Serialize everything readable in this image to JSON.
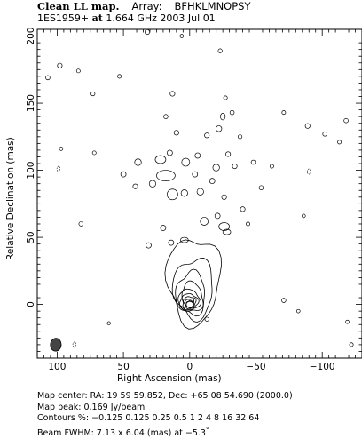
{
  "title": {
    "main": "Clean LL map.",
    "array_label": "Array:",
    "array": "BFHKLMNOPSY",
    "source": "1ES1959+",
    "at": "at",
    "frequency": "1.664 GHz 2003 Jul 01"
  },
  "chart_data": {
    "type": "contour",
    "xlabel": "Right Ascension  (mas)",
    "ylabel": "Relative Declination  (mas)",
    "xlim": [
      115,
      -130
    ],
    "ylim": [
      -40,
      205
    ],
    "x_ticks": [
      100,
      50,
      0,
      -50,
      -100
    ],
    "x_tick_labels": [
      "100",
      "50",
      "0",
      "−50",
      "−100"
    ],
    "y_ticks": [
      0,
      50,
      100,
      150,
      200
    ],
    "y_tick_labels": [
      "0",
      "50",
      "100",
      "150",
      "200"
    ],
    "core": {
      "x": 0,
      "y": 0
    },
    "contour_levels_percent": [
      -0.125,
      0.125,
      0.25,
      0.5,
      1,
      2,
      4,
      8,
      16,
      32,
      64
    ],
    "jet_contours": [
      {
        "level": 0.125,
        "cx": -3,
        "cy": 18,
        "rx": 20,
        "ry": 32
      },
      {
        "level": 0.25,
        "cx": -3,
        "cy": 12,
        "rx": 15,
        "ry": 22
      },
      {
        "level": 0.5,
        "cx": -1,
        "cy": 8,
        "rx": 11,
        "ry": 16
      },
      {
        "level": 1,
        "cx": -1,
        "cy": 5,
        "rx": 9,
        "ry": 11
      },
      {
        "level": 2,
        "cx": 0,
        "cy": 3,
        "rx": 7.5,
        "ry": 8
      },
      {
        "level": 4,
        "cx": 0,
        "cy": 2,
        "rx": 6,
        "ry": 6
      },
      {
        "level": 8,
        "cx": 0,
        "cy": 1.5,
        "rx": 4.5,
        "ry": 4.5
      },
      {
        "level": 16,
        "cx": 0,
        "cy": 1,
        "rx": 3.5,
        "ry": 3.2
      },
      {
        "level": 32,
        "cx": 0,
        "cy": 0.5,
        "rx": 2.5,
        "ry": 2.3
      },
      {
        "level": 64,
        "cx": 0,
        "cy": 0,
        "rx": 1.5,
        "ry": 1.4
      }
    ],
    "noise_blobs": [
      {
        "x": 32,
        "y": 203,
        "rx": 1.8,
        "ry": 1.8
      },
      {
        "x": 6,
        "y": 200,
        "rx": 1.3,
        "ry": 1.3
      },
      {
        "x": -23,
        "y": 189,
        "rx": 1.5,
        "ry": 1.5
      },
      {
        "x": 107,
        "y": 169,
        "rx": 1.6,
        "ry": 1.6
      },
      {
        "x": 98,
        "y": 178,
        "rx": 1.8,
        "ry": 1.8
      },
      {
        "x": 84,
        "y": 174,
        "rx": 1.4,
        "ry": 1.4
      },
      {
        "x": 73,
        "y": 157,
        "rx": 1.5,
        "ry": 1.5
      },
      {
        "x": 53,
        "y": 170,
        "rx": 1.4,
        "ry": 1.4
      },
      {
        "x": 13,
        "y": 157,
        "rx": 1.8,
        "ry": 1.8
      },
      {
        "x": 18,
        "y": 140,
        "rx": 1.6,
        "ry": 1.6
      },
      {
        "x": 10,
        "y": 128,
        "rx": 1.8,
        "ry": 1.8
      },
      {
        "x": -13,
        "y": 126,
        "rx": 1.8,
        "ry": 1.8
      },
      {
        "x": -22,
        "y": 131,
        "rx": 2.2,
        "ry": 2.2
      },
      {
        "x": -25,
        "y": 140,
        "rx": 1.8,
        "ry": 2.5
      },
      {
        "x": -32,
        "y": 143,
        "rx": 1.6,
        "ry": 1.6
      },
      {
        "x": -27,
        "y": 154,
        "rx": 1.4,
        "ry": 1.4
      },
      {
        "x": -38,
        "y": 125,
        "rx": 1.5,
        "ry": 1.5
      },
      {
        "x": -71,
        "y": 143,
        "rx": 1.4,
        "ry": 1.4
      },
      {
        "x": -89,
        "y": 133,
        "rx": 1.8,
        "ry": 1.8
      },
      {
        "x": -102,
        "y": 127,
        "rx": 1.6,
        "ry": 1.6
      },
      {
        "x": -118,
        "y": 137,
        "rx": 1.6,
        "ry": 1.6
      },
      {
        "x": -113,
        "y": 121,
        "rx": 1.4,
        "ry": 1.4
      },
      {
        "x": 72,
        "y": 113,
        "rx": 1.4,
        "ry": 1.4
      },
      {
        "x": 97,
        "y": 116,
        "rx": 1.3,
        "ry": 1.3
      },
      {
        "x": 22,
        "y": 108,
        "rx": 4,
        "ry": 3
      },
      {
        "x": 15,
        "y": 113,
        "rx": 2,
        "ry": 2
      },
      {
        "x": 3,
        "y": 106,
        "rx": 3,
        "ry": 3
      },
      {
        "x": -6,
        "y": 111,
        "rx": 2,
        "ry": 2
      },
      {
        "x": 39,
        "y": 106,
        "rx": 2.5,
        "ry": 2.5
      },
      {
        "x": 50,
        "y": 97,
        "rx": 2,
        "ry": 2
      },
      {
        "x": 41,
        "y": 88,
        "rx": 1.8,
        "ry": 1.8
      },
      {
        "x": 28,
        "y": 90,
        "rx": 2.5,
        "ry": 2.5
      },
      {
        "x": 18,
        "y": 96,
        "rx": 7,
        "ry": 4
      },
      {
        "x": 13,
        "y": 82,
        "rx": 4,
        "ry": 4
      },
      {
        "x": 4,
        "y": 83,
        "rx": 2.5,
        "ry": 2.5
      },
      {
        "x": -4,
        "y": 97,
        "rx": 2,
        "ry": 2
      },
      {
        "x": -8,
        "y": 84,
        "rx": 2.5,
        "ry": 2.5
      },
      {
        "x": -17,
        "y": 92,
        "rx": 2,
        "ry": 2
      },
      {
        "x": -20,
        "y": 102,
        "rx": 2.5,
        "ry": 2.5
      },
      {
        "x": -29,
        "y": 112,
        "rx": 1.8,
        "ry": 1.8
      },
      {
        "x": -34,
        "y": 103,
        "rx": 1.8,
        "ry": 1.8
      },
      {
        "x": -48,
        "y": 106,
        "rx": 1.6,
        "ry": 1.6
      },
      {
        "x": -62,
        "y": 103,
        "rx": 1.4,
        "ry": 1.4
      },
      {
        "x": -54,
        "y": 87,
        "rx": 1.6,
        "ry": 1.6
      },
      {
        "x": -26,
        "y": 80,
        "rx": 1.8,
        "ry": 1.8
      },
      {
        "x": -40,
        "y": 71,
        "rx": 1.8,
        "ry": 1.8
      },
      {
        "x": -21,
        "y": 66,
        "rx": 2,
        "ry": 2
      },
      {
        "x": -11,
        "y": 62,
        "rx": 3,
        "ry": 3
      },
      {
        "x": -26,
        "y": 58,
        "rx": 4,
        "ry": 3
      },
      {
        "x": -28,
        "y": 54,
        "rx": 3,
        "ry": 2
      },
      {
        "x": 20,
        "y": 57,
        "rx": 2,
        "ry": 2
      },
      {
        "x": 14,
        "y": 46,
        "rx": 2,
        "ry": 2
      },
      {
        "x": 31,
        "y": 44,
        "rx": 2,
        "ry": 2
      },
      {
        "x": 4,
        "y": 48,
        "rx": 3,
        "ry": 2
      },
      {
        "x": 82,
        "y": 60,
        "rx": 1.6,
        "ry": 1.6
      },
      {
        "x": -44,
        "y": 60,
        "rx": 1.4,
        "ry": 1.4
      },
      {
        "x": -86,
        "y": 66,
        "rx": 1.3,
        "ry": 1.3
      },
      {
        "x": -71,
        "y": 3,
        "rx": 1.6,
        "ry": 1.6
      },
      {
        "x": -82,
        "y": -5,
        "rx": 1.3,
        "ry": 1.3
      },
      {
        "x": -119,
        "y": -13,
        "rx": 1.3,
        "ry": 1.3
      },
      {
        "x": -13,
        "y": -11,
        "rx": 1.5,
        "ry": 1.5
      },
      {
        "x": 61,
        "y": -14,
        "rx": 1.2,
        "ry": 1.2
      },
      {
        "x": -122,
        "y": -30,
        "rx": 1.4,
        "ry": 1.4
      }
    ],
    "negative_blobs": [
      {
        "x": 99,
        "y": 101
      },
      {
        "x": 87,
        "y": -30
      },
      {
        "x": -90,
        "y": 99
      }
    ],
    "beam": {
      "x": 101,
      "y": -30,
      "bmaj": 7.13,
      "bmin": 6.04,
      "pa": -5.3
    }
  },
  "footer": {
    "line1": "Map center:  RA: 19 59 59.852,  Dec: +65 08 54.690 (2000.0)",
    "line2": "Map peak: 0.169 Jy/beam",
    "line3": "Contours %: −0.125 0.125 0.25 0.5 1 2 4 8 16 32 64",
    "line4_prefix": "Beam FWHM: 7.13 x 6.04 (mas) at −5.3",
    "line4_suffix": "°"
  },
  "colors": {
    "ink": "#000000",
    "background": "#ffffff",
    "beam_fill": "#444444"
  }
}
